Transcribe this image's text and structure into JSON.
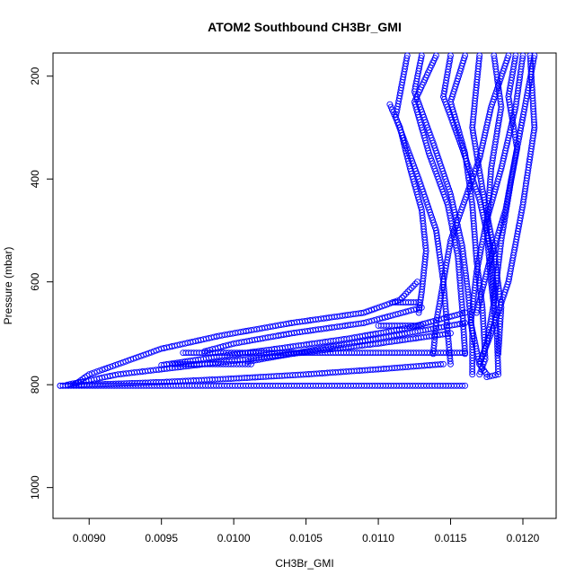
{
  "chart_data": {
    "type": "scatter",
    "title": "ATOM2 Southbound CH3Br_GMI",
    "xlabel": "CH3Br_GMI",
    "ylabel": "Pressure (mbar)",
    "xlim": [
      0.00875,
      0.01223
    ],
    "ylim": [
      1060,
      155
    ],
    "y_reversed": true,
    "grid": false,
    "legend": "none",
    "marker": "open-circle",
    "color": "#0000ff",
    "x_ticks": [
      {
        "value": 0.009,
        "label": "0.0090"
      },
      {
        "value": 0.0095,
        "label": "0.0095"
      },
      {
        "value": 0.01,
        "label": "0.0100"
      },
      {
        "value": 0.0105,
        "label": "0.0105"
      },
      {
        "value": 0.011,
        "label": "0.0110"
      },
      {
        "value": 0.0115,
        "label": "0.0115"
      },
      {
        "value": 0.012,
        "label": "0.0120"
      }
    ],
    "y_ticks": [
      {
        "value": 200,
        "label": "200"
      },
      {
        "value": 400,
        "label": "400"
      },
      {
        "value": 600,
        "label": "600"
      },
      {
        "value": 800,
        "label": "800"
      },
      {
        "value": 1000,
        "label": "1000"
      }
    ],
    "series": [
      {
        "points": [
          [
            0.0118,
            160
          ],
          [
            0.01185,
            260
          ],
          [
            0.01178,
            380
          ],
          [
            0.01175,
            500
          ],
          [
            0.01178,
            600
          ],
          [
            0.01182,
            700
          ],
          [
            0.01183,
            780
          ],
          [
            0.01175,
            785
          ]
        ]
      },
      {
        "points": [
          [
            0.0116,
            160
          ],
          [
            0.0115,
            250
          ],
          [
            0.0116,
            350
          ],
          [
            0.01165,
            450
          ],
          [
            0.01168,
            560
          ],
          [
            0.01172,
            650
          ],
          [
            0.01174,
            750
          ],
          [
            0.0117,
            780
          ]
        ]
      },
      {
        "points": [
          [
            0.012,
            160
          ],
          [
            0.01195,
            260
          ],
          [
            0.01185,
            380
          ],
          [
            0.01175,
            480
          ],
          [
            0.01168,
            580
          ],
          [
            0.01164,
            680
          ],
          [
            0.0117,
            760
          ],
          [
            0.01175,
            780
          ]
        ]
      },
      {
        "points": [
          [
            0.0112,
            160
          ],
          [
            0.01112,
            280
          ],
          [
            0.01128,
            400
          ],
          [
            0.0114,
            500
          ],
          [
            0.01145,
            600
          ],
          [
            0.01148,
            700
          ],
          [
            0.0115,
            760
          ]
        ]
      },
      {
        "points": [
          [
            0.0114,
            160
          ],
          [
            0.01125,
            250
          ],
          [
            0.01135,
            350
          ],
          [
            0.01148,
            450
          ],
          [
            0.01155,
            550
          ],
          [
            0.01158,
            650
          ],
          [
            0.0116,
            740
          ]
        ]
      },
      {
        "points": [
          [
            0.01208,
            160
          ],
          [
            0.012,
            280
          ],
          [
            0.01192,
            400
          ],
          [
            0.01185,
            520
          ],
          [
            0.0118,
            640
          ],
          [
            0.01175,
            720
          ],
          [
            0.0117,
            760
          ]
        ]
      },
      {
        "points": [
          [
            0.0117,
            160
          ],
          [
            0.01165,
            300
          ],
          [
            0.01172,
            420
          ],
          [
            0.0118,
            540
          ],
          [
            0.01185,
            650
          ],
          [
            0.01183,
            740
          ]
        ]
      },
      {
        "points": [
          [
            0.01108,
            255
          ],
          [
            0.01115,
            300
          ],
          [
            0.01122,
            380
          ],
          [
            0.0113,
            460
          ],
          [
            0.01133,
            540
          ],
          [
            0.0113,
            620
          ],
          [
            0.01128,
            660
          ]
        ]
      },
      {
        "points": [
          [
            0.0119,
            160
          ],
          [
            0.01178,
            260
          ],
          [
            0.0117,
            360
          ],
          [
            0.0116,
            440
          ],
          [
            0.0115,
            520
          ],
          [
            0.01145,
            600
          ],
          [
            0.0114,
            680
          ],
          [
            0.01138,
            740
          ]
        ]
      },
      {
        "points": [
          [
            0.01205,
            160
          ],
          [
            0.01208,
            300
          ],
          [
            0.012,
            450
          ],
          [
            0.0119,
            600
          ],
          [
            0.01178,
            700
          ],
          [
            0.0117,
            760
          ]
        ]
      },
      {
        "points": [
          [
            0.0113,
            160
          ],
          [
            0.01125,
            230
          ],
          [
            0.01138,
            330
          ],
          [
            0.0115,
            430
          ],
          [
            0.01158,
            530
          ],
          [
            0.01162,
            620
          ],
          [
            0.01165,
            700
          ],
          [
            0.01165,
            780
          ]
        ]
      },
      {
        "points": [
          [
            0.01195,
            160
          ],
          [
            0.0119,
            240
          ],
          [
            0.01196,
            340
          ],
          [
            0.01188,
            460
          ],
          [
            0.01176,
            570
          ],
          [
            0.01168,
            660
          ]
        ]
      },
      {
        "points": [
          [
            0.0115,
            160
          ],
          [
            0.01145,
            240
          ],
          [
            0.01158,
            340
          ],
          [
            0.0117,
            440
          ],
          [
            0.01178,
            540
          ],
          [
            0.0118,
            640
          ]
        ]
      },
      {
        "points": [
          [
            0.01127,
            600
          ],
          [
            0.01115,
            635
          ],
          [
            0.0109,
            660
          ],
          [
            0.0104,
            680
          ],
          [
            0.0099,
            705
          ],
          [
            0.0095,
            730
          ],
          [
            0.0092,
            760
          ],
          [
            0.009,
            780
          ],
          [
            0.0089,
            800
          ]
        ]
      },
      {
        "points": [
          [
            0.0113,
            650
          ],
          [
            0.0109,
            680
          ],
          [
            0.0104,
            700
          ],
          [
            0.01,
            720
          ],
          [
            0.0098,
            735
          ]
        ]
      },
      {
        "points": [
          [
            0.0116,
            660
          ],
          [
            0.0112,
            690
          ],
          [
            0.0108,
            710
          ],
          [
            0.0103,
            730
          ],
          [
            0.0099,
            745
          ],
          [
            0.0095,
            762
          ]
        ]
      },
      {
        "points": [
          [
            0.0116,
            680
          ],
          [
            0.0112,
            700
          ],
          [
            0.0106,
            730
          ],
          [
            0.0101,
            755
          ]
        ]
      },
      {
        "points": [
          [
            0.0115,
            700
          ],
          [
            0.011,
            720
          ],
          [
            0.0104,
            740
          ],
          [
            0.0098,
            760
          ],
          [
            0.0092,
            780
          ],
          [
            0.00885,
            800
          ]
        ]
      },
      {
        "points": [
          [
            0.01145,
            760
          ],
          [
            0.011,
            770
          ],
          [
            0.0105,
            780
          ],
          [
            0.01,
            788
          ],
          [
            0.0095,
            795
          ],
          [
            0.009,
            800
          ],
          [
            0.0088,
            802
          ]
        ]
      },
      {
        "points": [
          [
            0.0088,
            802
          ],
          [
            0.0096,
            802
          ],
          [
            0.0104,
            802
          ],
          [
            0.0112,
            802
          ],
          [
            0.0116,
            802
          ]
        ]
      },
      {
        "points": [
          [
            0.00965,
            738
          ],
          [
            0.0103,
            738
          ],
          [
            0.011,
            738
          ],
          [
            0.0116,
            738
          ]
        ]
      },
      {
        "points": [
          [
            0.00958,
            760
          ],
          [
            0.01,
            760
          ],
          [
            0.01012,
            760
          ]
        ]
      },
      {
        "points": [
          [
            0.011,
            685
          ],
          [
            0.0113,
            685
          ]
        ]
      },
      {
        "points": [
          [
            0.0111,
            640
          ],
          [
            0.01128,
            640
          ]
        ]
      }
    ]
  }
}
